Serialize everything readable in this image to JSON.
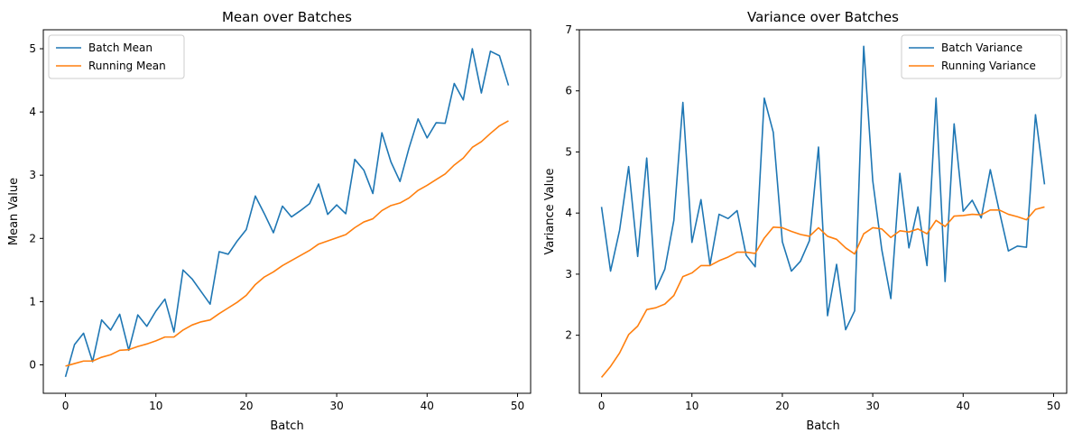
{
  "chart_data": [
    {
      "type": "line",
      "title": "Mean over Batches",
      "xlabel": "Batch",
      "ylabel": "Mean Value",
      "xlim": [
        -2.45,
        51.45
      ],
      "ylim": [
        -0.45,
        5.3
      ],
      "xticks": [
        0,
        10,
        20,
        30,
        40,
        50
      ],
      "yticks": [
        0,
        1,
        2,
        3,
        4,
        5
      ],
      "legend": "top-left",
      "grid": false,
      "x": [
        0,
        1,
        2,
        3,
        4,
        5,
        6,
        7,
        8,
        9,
        10,
        11,
        12,
        13,
        14,
        15,
        16,
        17,
        18,
        19,
        20,
        21,
        22,
        23,
        24,
        25,
        26,
        27,
        28,
        29,
        30,
        31,
        32,
        33,
        34,
        35,
        36,
        37,
        38,
        39,
        40,
        41,
        42,
        43,
        44,
        45,
        46,
        47,
        48,
        49
      ],
      "series": [
        {
          "name": "Batch Mean",
          "color": "#1f77b4",
          "values": [
            -0.19,
            0.32,
            0.5,
            0.05,
            0.71,
            0.55,
            0.8,
            0.23,
            0.79,
            0.61,
            0.85,
            1.04,
            0.52,
            1.5,
            1.36,
            1.16,
            0.96,
            1.79,
            1.75,
            1.96,
            2.14,
            2.67,
            2.39,
            2.09,
            2.51,
            2.34,
            2.44,
            2.55,
            2.86,
            2.38,
            2.53,
            2.39,
            3.25,
            3.08,
            2.71,
            3.67,
            3.21,
            2.9,
            3.43,
            3.89,
            3.59,
            3.83,
            3.82,
            4.45,
            4.19,
            5.0,
            4.3,
            4.96,
            4.89,
            4.42
          ]
        },
        {
          "name": "Running Mean",
          "color": "#ff7f0e",
          "values": [
            -0.02,
            0.02,
            0.06,
            0.06,
            0.12,
            0.16,
            0.23,
            0.24,
            0.29,
            0.33,
            0.38,
            0.44,
            0.44,
            0.55,
            0.63,
            0.68,
            0.71,
            0.81,
            0.9,
            0.99,
            1.1,
            1.27,
            1.39,
            1.47,
            1.57,
            1.65,
            1.73,
            1.81,
            1.91,
            1.96,
            2.01,
            2.06,
            2.17,
            2.26,
            2.31,
            2.44,
            2.52,
            2.56,
            2.64,
            2.76,
            2.84,
            2.93,
            3.02,
            3.16,
            3.27,
            3.44,
            3.53,
            3.66,
            3.78,
            3.86
          ]
        }
      ]
    },
    {
      "type": "line",
      "title": "Variance over Batches",
      "xlabel": "Batch",
      "ylabel": "Variance Value",
      "xlim": [
        -2.45,
        51.45
      ],
      "ylim": [
        1.05,
        7.0
      ],
      "xticks": [
        0,
        10,
        20,
        30,
        40,
        50
      ],
      "yticks": [
        2,
        3,
        4,
        5,
        6,
        7
      ],
      "legend": "top-right",
      "grid": false,
      "x": [
        0,
        1,
        2,
        3,
        4,
        5,
        6,
        7,
        8,
        9,
        10,
        11,
        12,
        13,
        14,
        15,
        16,
        17,
        18,
        19,
        20,
        21,
        22,
        23,
        24,
        25,
        26,
        27,
        28,
        29,
        30,
        31,
        32,
        33,
        34,
        35,
        36,
        37,
        38,
        39,
        40,
        41,
        42,
        43,
        44,
        45,
        46,
        47,
        48,
        49
      ],
      "series": [
        {
          "name": "Batch Variance",
          "color": "#1f77b4",
          "values": [
            4.1,
            3.05,
            3.72,
            4.76,
            3.29,
            4.9,
            2.75,
            3.08,
            3.88,
            5.81,
            3.52,
            4.22,
            3.15,
            3.98,
            3.91,
            4.04,
            3.31,
            3.12,
            5.88,
            5.32,
            3.53,
            3.05,
            3.21,
            3.55,
            5.08,
            2.32,
            3.16,
            2.09,
            2.4,
            6.73,
            4.53,
            3.4,
            2.6,
            4.65,
            3.43,
            4.1,
            3.14,
            5.88,
            2.88,
            5.46,
            4.03,
            4.21,
            3.92,
            4.71,
            4.03,
            3.38,
            3.46,
            3.44,
            5.61,
            4.47
          ]
        },
        {
          "name": "Running Variance",
          "color": "#ff7f0e",
          "values": [
            1.31,
            1.49,
            1.71,
            2.01,
            2.15,
            2.42,
            2.45,
            2.51,
            2.65,
            2.96,
            3.02,
            3.14,
            3.14,
            3.22,
            3.28,
            3.36,
            3.36,
            3.34,
            3.59,
            3.77,
            3.76,
            3.7,
            3.65,
            3.62,
            3.76,
            3.62,
            3.57,
            3.43,
            3.33,
            3.66,
            3.76,
            3.74,
            3.6,
            3.71,
            3.69,
            3.74,
            3.66,
            3.88,
            3.78,
            3.95,
            3.96,
            3.98,
            3.97,
            4.05,
            4.05,
            3.98,
            3.94,
            3.89,
            4.06,
            4.1
          ]
        }
      ]
    }
  ]
}
